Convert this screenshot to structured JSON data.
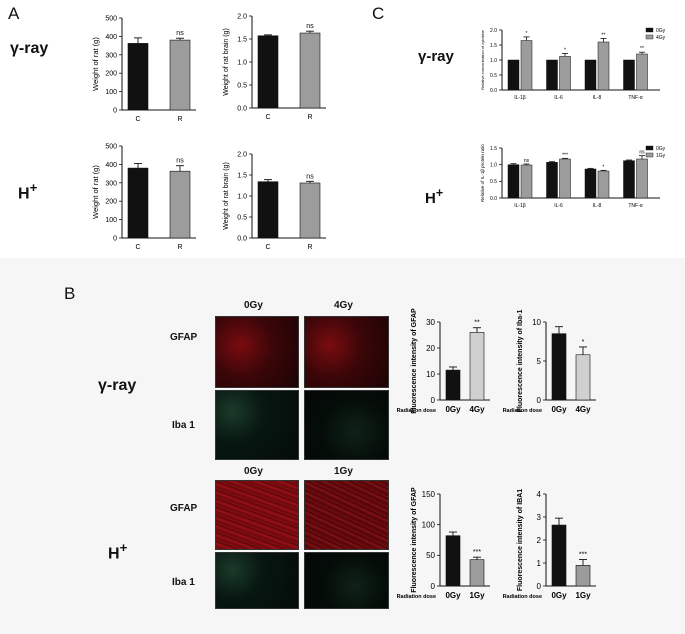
{
  "panels": {
    "A": "A",
    "B": "B",
    "C": "C"
  },
  "row_labels": {
    "gamma_A": "γ-ray",
    "hplus_A": "H",
    "gamma_B": "γ-ray",
    "hplus_B": "H",
    "gamma_C": "γ-ray",
    "hplus_C": "H",
    "plus_sup": "+"
  },
  "micro": {
    "col_0gy": "0Gy",
    "col_4gy": "4Gy",
    "col_0gy_b": "0Gy",
    "col_1gy": "1Gy",
    "gfap": "GFAP",
    "iba1": "Iba 1",
    "gfap_b": "GFAP",
    "iba1_b": "Iba 1"
  },
  "colors": {
    "black_bar": "#111111",
    "grey_bar": "#9c9c9c",
    "light_bar": "#d0d0d0"
  },
  "chart_data": [
    {
      "id": "A1",
      "type": "bar",
      "ylabel": "Weight of rat (g)",
      "categories": [
        "C",
        "R"
      ],
      "values": [
        362,
        380
      ],
      "errors": [
        30,
        10
      ],
      "ylim": [
        0,
        500
      ],
      "yticks": [
        "0",
        "100",
        "200",
        "300",
        "400",
        "500"
      ],
      "annotation": "ns"
    },
    {
      "id": "A2",
      "type": "bar",
      "ylabel": "Weight of rat brain (g)",
      "categories": [
        "C",
        "R"
      ],
      "values": [
        1.57,
        1.63
      ],
      "errors": [
        0.02,
        0.04
      ],
      "ylim": [
        0,
        2.0
      ],
      "yticks": [
        "0.0",
        "0.5",
        "1.0",
        "1.5",
        "2.0"
      ],
      "annotation": "ns"
    },
    {
      "id": "A3",
      "type": "bar",
      "ylabel": "Weight of rat (g)",
      "categories": [
        "C",
        "R"
      ],
      "values": [
        380,
        363
      ],
      "errors": [
        25,
        30
      ],
      "ylim": [
        0,
        500
      ],
      "yticks": [
        "0",
        "100",
        "200",
        "300",
        "400",
        "500"
      ],
      "annotation": "ns"
    },
    {
      "id": "A4",
      "type": "bar",
      "ylabel": "Weight of rat brain (g)",
      "categories": [
        "C",
        "R"
      ],
      "values": [
        1.34,
        1.31
      ],
      "errors": [
        0.05,
        0.04
      ],
      "ylim": [
        0,
        2.0
      ],
      "yticks": [
        "0.0",
        "0.5",
        "1.0",
        "1.5",
        "2.0"
      ],
      "annotation": "ns"
    },
    {
      "id": "C1",
      "type": "bar",
      "ylabel": "Relative concentration of cytokine",
      "categories": [
        "IL-1β",
        "IL-6",
        "IL-8",
        "TNF-α"
      ],
      "series": [
        {
          "name": "0Gy",
          "values": [
            1.0,
            1.0,
            1.0,
            1.0
          ]
        },
        {
          "name": "4Gy",
          "values": [
            1.65,
            1.12,
            1.6,
            1.2
          ]
        }
      ],
      "errors": [
        [
          0,
          0,
          0,
          0
        ],
        [
          0.12,
          0.1,
          0.12,
          0.06
        ]
      ],
      "ylim": [
        0,
        2.0
      ],
      "yticks": [
        "0.0",
        "0.5",
        "1.0",
        "1.5",
        "2.0"
      ],
      "annotations": [
        "*",
        "*",
        "**",
        "**"
      ],
      "legend": "top-right"
    },
    {
      "id": "C2",
      "type": "bar",
      "ylabel": "Relative of IL-1β protein ratio",
      "categories": [
        "IL-1β",
        "IL-6",
        "IL-8",
        "TNF-α"
      ],
      "series": [
        {
          "name": "0Gy",
          "values": [
            1.0,
            1.07,
            0.87,
            1.12
          ]
        },
        {
          "name": "1Gy",
          "values": [
            0.99,
            1.17,
            0.81,
            1.17
          ]
        }
      ],
      "errors": [
        [
          0.03,
          0.02,
          0.02,
          0.02
        ],
        [
          0.03,
          0.02,
          0.02,
          0.1
        ]
      ],
      "ylim": [
        0,
        1.5
      ],
      "yticks": [
        "0.0",
        "0.5",
        "1.0",
        "1.5"
      ],
      "annotations": [
        "ns",
        "***",
        "*",
        "ns"
      ],
      "legend": "top-right"
    },
    {
      "id": "B1",
      "type": "bar",
      "ylabel": "Fluorescence intensity of GFAP",
      "xlabel": "Radiation dose",
      "categories": [
        "0Gy",
        "4Gy"
      ],
      "values": [
        11.5,
        26
      ],
      "errors": [
        1.2,
        1.8
      ],
      "ylim": [
        0,
        30
      ],
      "yticks": [
        "0",
        "10",
        "20",
        "30"
      ],
      "annotation": "**"
    },
    {
      "id": "B2",
      "type": "bar",
      "ylabel": "Fluorescence intensity of Iba-1",
      "xlabel": "Radiation dose",
      "categories": [
        "0Gy",
        "4Gy"
      ],
      "values": [
        8.5,
        5.8
      ],
      "errors": [
        0.9,
        1.0
      ],
      "ylim": [
        0,
        10
      ],
      "yticks": [
        "0",
        "5",
        "10"
      ],
      "annotation": "*"
    },
    {
      "id": "B3",
      "type": "bar",
      "ylabel": "Fluorescence intensity of GFAP",
      "xlabel": "Radiation dose",
      "categories": [
        "0Gy",
        "1Gy"
      ],
      "values": [
        82,
        43
      ],
      "errors": [
        6,
        4
      ],
      "ylim": [
        0,
        150
      ],
      "yticks": [
        "0",
        "50",
        "100",
        "150"
      ],
      "annotation": "***"
    },
    {
      "id": "B4",
      "type": "bar",
      "ylabel": "Fluorescence intensity of IBA1",
      "xlabel": "Radiation dose",
      "categories": [
        "0Gy",
        "1Gy"
      ],
      "values": [
        2.65,
        0.9
      ],
      "errors": [
        0.3,
        0.25
      ],
      "ylim": [
        0,
        4
      ],
      "yticks": [
        "0",
        "1",
        "2",
        "3",
        "4"
      ],
      "annotation": "***"
    }
  ]
}
